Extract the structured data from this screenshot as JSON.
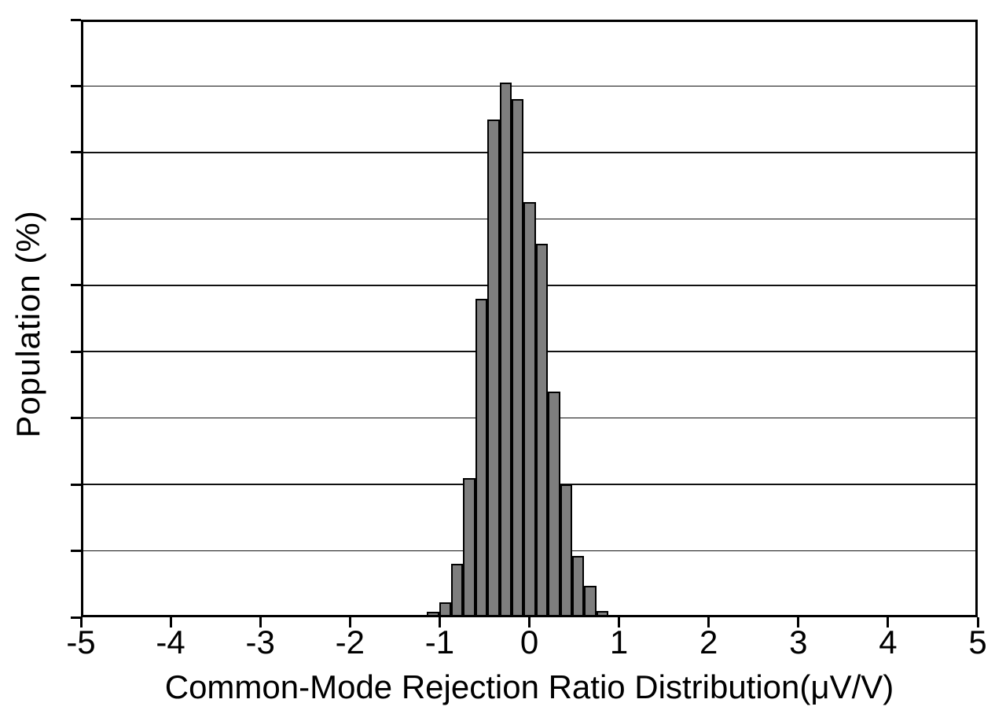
{
  "chart_data": {
    "type": "bar",
    "subtype": "histogram",
    "title": "",
    "xlabel": "Common-Mode Rejection Ratio Distribution(μV/V)",
    "ylabel": "Population (%)",
    "xlim": [
      -5,
      5
    ],
    "ylim": [
      0,
      18
    ],
    "grid": "horizontal",
    "y_grid_step": 2,
    "y_tick_labels_shown": false,
    "legend": "none",
    "x_tick_values": [
      -5,
      -4,
      -3,
      -2,
      -1,
      0,
      1,
      2,
      3,
      4,
      5
    ],
    "x_tick_labels": [
      "-5",
      "-4",
      "-3",
      "-2",
      "-1",
      "0",
      "1",
      "2",
      "3",
      "4",
      "5"
    ],
    "bin_width": 0.135,
    "bars": [
      {
        "center": -1.075,
        "value": 0.17
      },
      {
        "center": -0.94,
        "value": 0.45
      },
      {
        "center": -0.805,
        "value": 1.6
      },
      {
        "center": -0.67,
        "value": 4.2
      },
      {
        "center": -0.535,
        "value": 9.6
      },
      {
        "center": -0.4,
        "value": 15.0
      },
      {
        "center": -0.265,
        "value": 16.1
      },
      {
        "center": -0.13,
        "value": 15.6
      },
      {
        "center": 0.005,
        "value": 12.5
      },
      {
        "center": 0.14,
        "value": 11.25
      },
      {
        "center": 0.275,
        "value": 6.8
      },
      {
        "center": 0.41,
        "value": 4.0
      },
      {
        "center": 0.545,
        "value": 1.85
      },
      {
        "center": 0.68,
        "value": 0.95
      },
      {
        "center": 0.815,
        "value": 0.19
      }
    ]
  },
  "colors": {
    "background": "#ffffff",
    "bar_fill": "#7e7e7e",
    "bar_edge": "#000000",
    "axis": "#000000",
    "gridline": "#111111",
    "text": "#000000"
  }
}
